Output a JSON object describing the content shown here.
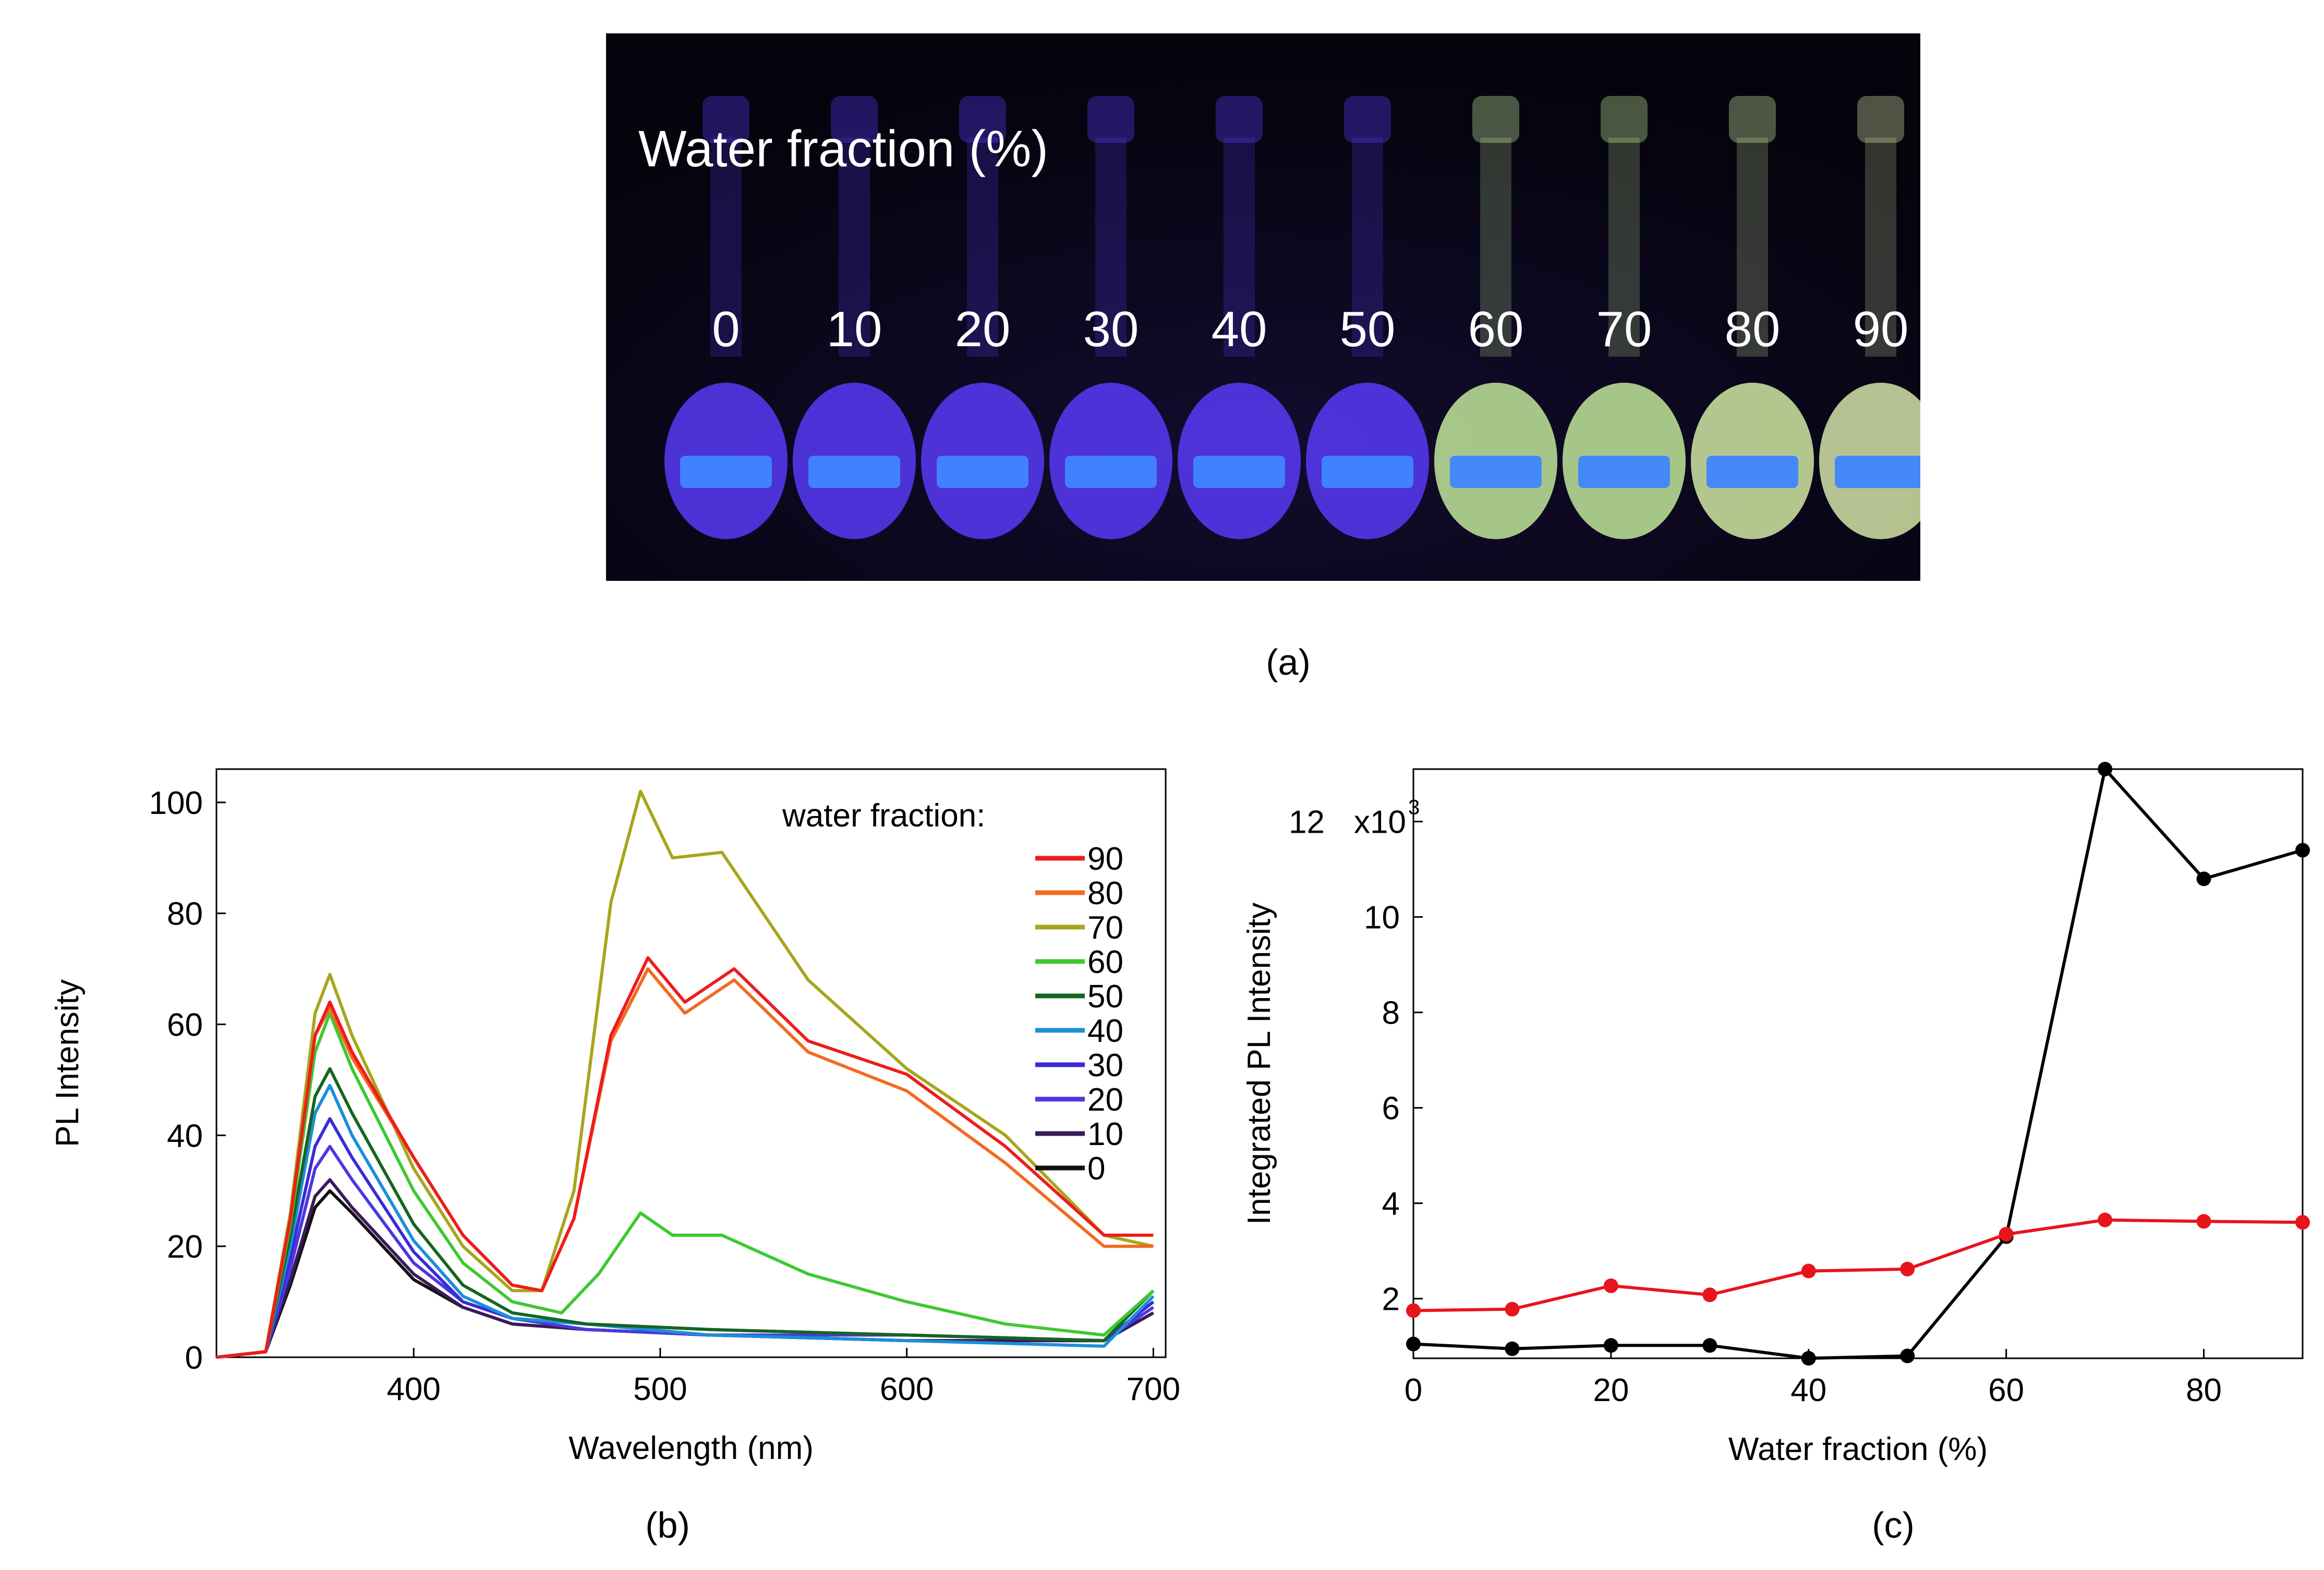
{
  "panel_a": {
    "title": "Water fraction (%)",
    "fractions": [
      "0",
      "10",
      "20",
      "30",
      "40",
      "50",
      "60",
      "70",
      "80",
      "90"
    ],
    "caption": "(a)",
    "colors": [
      "#5a3cff",
      "#5a3cff",
      "#5a3cff",
      "#5a3cff",
      "#5a3cff",
      "#5a3cff",
      "#c8f0a0",
      "#c8f0a0",
      "#d8f0a8",
      "#dcecac"
    ]
  },
  "captions": {
    "b": "(b)",
    "c": "(c)"
  },
  "chart_data": [
    {
      "id": "b",
      "type": "line",
      "title": "",
      "xlabel": "Wavelength (nm)",
      "ylabel": "PL Intensity",
      "xlim": [
        320,
        705
      ],
      "ylim": [
        0,
        106
      ],
      "xticks": [
        400,
        500,
        600,
        700
      ],
      "yticks": [
        0,
        20,
        40,
        60,
        80,
        100
      ],
      "legend_title": "water fraction:",
      "legend_position": "top-right",
      "series": [
        {
          "name": "90",
          "color": "#ee1c1c",
          "x": [
            320,
            340,
            350,
            360,
            366,
            375,
            400,
            420,
            440,
            452,
            465,
            480,
            495,
            510,
            530,
            560,
            600,
            640,
            680,
            700
          ],
          "y": [
            0,
            1,
            25,
            58,
            64,
            55,
            36,
            22,
            13,
            12,
            25,
            58,
            72,
            64,
            70,
            57,
            51,
            38,
            22,
            22
          ]
        },
        {
          "name": "80",
          "color": "#f26a20",
          "x": [
            320,
            340,
            350,
            360,
            366,
            375,
            400,
            420,
            440,
            452,
            465,
            480,
            495,
            510,
            530,
            560,
            600,
            640,
            680,
            700
          ],
          "y": [
            0,
            1,
            25,
            58,
            63,
            54,
            36,
            22,
            13,
            12,
            25,
            57,
            70,
            62,
            68,
            55,
            48,
            35,
            20,
            20
          ]
        },
        {
          "name": "70",
          "color": "#a7a61b",
          "x": [
            320,
            340,
            350,
            360,
            366,
            375,
            400,
            420,
            440,
            452,
            465,
            480,
            492,
            505,
            525,
            560,
            600,
            640,
            680,
            700
          ],
          "y": [
            0,
            1,
            26,
            62,
            69,
            58,
            34,
            20,
            12,
            12,
            30,
            82,
            102,
            90,
            91,
            68,
            52,
            40,
            22,
            20
          ]
        },
        {
          "name": "60",
          "color": "#3ec832",
          "x": [
            320,
            340,
            350,
            360,
            366,
            375,
            400,
            420,
            440,
            460,
            475,
            492,
            505,
            525,
            560,
            600,
            640,
            680,
            700
          ],
          "y": [
            0,
            1,
            24,
            55,
            62,
            52,
            30,
            17,
            10,
            8,
            15,
            26,
            22,
            22,
            15,
            10,
            6,
            4,
            12
          ]
        },
        {
          "name": "50",
          "color": "#16651f",
          "x": [
            320,
            340,
            350,
            360,
            366,
            375,
            400,
            420,
            440,
            470,
            520,
            600,
            680,
            700
          ],
          "y": [
            0,
            1,
            22,
            47,
            52,
            44,
            24,
            13,
            8,
            6,
            5,
            4,
            3,
            12
          ]
        },
        {
          "name": "40",
          "color": "#1b8fd8",
          "x": [
            320,
            340,
            350,
            360,
            366,
            375,
            400,
            420,
            440,
            470,
            520,
            600,
            680,
            700
          ],
          "y": [
            0,
            1,
            20,
            44,
            49,
            40,
            21,
            11,
            7,
            6,
            4,
            3,
            2,
            11
          ]
        },
        {
          "name": "30",
          "color": "#3c2ad8",
          "x": [
            320,
            340,
            350,
            360,
            366,
            375,
            400,
            420,
            440,
            470,
            520,
            600,
            680,
            700
          ],
          "y": [
            0,
            1,
            18,
            38,
            43,
            36,
            19,
            10,
            7,
            6,
            5,
            4,
            3,
            10
          ]
        },
        {
          "name": "20",
          "color": "#4b38e0",
          "x": [
            320,
            340,
            350,
            360,
            366,
            375,
            400,
            420,
            440,
            470,
            520,
            600,
            680,
            700
          ],
          "y": [
            0,
            1,
            16,
            34,
            38,
            32,
            17,
            10,
            7,
            5,
            4,
            4,
            3,
            9
          ]
        },
        {
          "name": "10",
          "color": "#3a1a5c",
          "x": [
            320,
            340,
            350,
            360,
            366,
            375,
            400,
            420,
            440,
            470,
            520,
            600,
            680,
            700
          ],
          "y": [
            0,
            1,
            14,
            29,
            32,
            27,
            15,
            9,
            6,
            5,
            4,
            3,
            3,
            8
          ]
        },
        {
          "name": "0",
          "color": "#111111",
          "x": [
            320,
            340,
            350,
            360,
            366,
            375,
            400,
            420,
            440,
            470,
            520,
            600,
            680,
            700
          ],
          "y": [
            0,
            1,
            13,
            27,
            30,
            26,
            14,
            9,
            6,
            5,
            4,
            3,
            3,
            8
          ]
        }
      ]
    },
    {
      "id": "c",
      "type": "line",
      "title": "",
      "xlabel": "Water fraction (%)",
      "ylabel": "Integrated PL Intensity",
      "xlim": [
        0,
        90
      ],
      "ylim": [
        0.75,
        13.1
      ],
      "xticks": [
        0,
        20,
        40,
        60,
        80
      ],
      "yticks": [
        2,
        4,
        6,
        8,
        10,
        12
      ],
      "ytick_labels": [
        "2",
        "4",
        "6",
        "8",
        "10",
        "12"
      ],
      "y_multiplier": "x10",
      "y_multiplier_exp": "3",
      "series": [
        {
          "name": "black",
          "color": "#000000",
          "x": [
            0,
            10,
            20,
            30,
            40,
            50,
            60,
            70,
            80,
            90
          ],
          "y": [
            1.05,
            0.95,
            1.02,
            1.02,
            0.75,
            0.8,
            3.3,
            13.1,
            10.8,
            11.4
          ]
        },
        {
          "name": "red",
          "color": "#e8141c",
          "x": [
            0,
            10,
            20,
            30,
            40,
            50,
            60,
            70,
            80,
            90
          ],
          "y": [
            1.75,
            1.78,
            2.27,
            2.08,
            2.58,
            2.62,
            3.35,
            3.65,
            3.62,
            3.6
          ]
        }
      ]
    }
  ]
}
